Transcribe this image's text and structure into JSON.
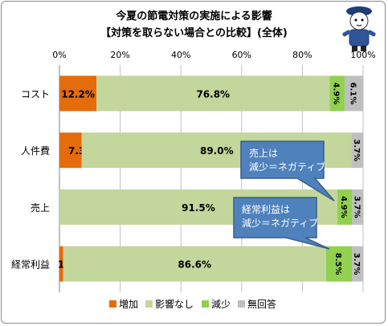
{
  "title_line1": "今夏の節電対策の実施による影響",
  "title_line2": "【対策を取らない場合との比較】(全体)",
  "colors": {
    "increase": "#e46c0a",
    "none": "#c3d69b",
    "decrease": "#92d050",
    "no_answer": "#bfbfbf",
    "callout_fill": "#4f81bd",
    "callout_border": "#385d8a",
    "grid": "#c0c0c0"
  },
  "chart_data": {
    "type": "bar",
    "orientation": "horizontal",
    "stacked": true,
    "percent": true,
    "xlim": [
      0,
      100
    ],
    "xticks": [
      "0%",
      "20%",
      "40%",
      "60%",
      "80%",
      "100%"
    ],
    "categories": [
      "コスト",
      "人件費",
      "売上",
      "経常利益"
    ],
    "series": [
      {
        "name": "増加",
        "color": "#e46c0a",
        "values": [
          12.2,
          7.3,
          0,
          1.2
        ],
        "labels": [
          "12.2%",
          "7.3%",
          "",
          "1.2%"
        ]
      },
      {
        "name": "影響なし",
        "color": "#c3d69b",
        "values": [
          76.8,
          89.0,
          91.5,
          86.6
        ],
        "labels": [
          "76.8%",
          "89.0%",
          "91.5%",
          "86.6%"
        ]
      },
      {
        "name": "減少",
        "color": "#92d050",
        "values": [
          4.9,
          0,
          4.9,
          8.5
        ],
        "labels": [
          "4.9%",
          "",
          "4.9%",
          "8.5%"
        ]
      },
      {
        "name": "無回答",
        "color": "#bfbfbf",
        "values": [
          6.1,
          3.7,
          3.7,
          3.7
        ],
        "labels": [
          "6.1%",
          "3.7%",
          "3.7%",
          "3.7%"
        ]
      }
    ],
    "legend_position": "bottom",
    "grid": true,
    "annotations": [
      {
        "text": [
          "売上は",
          "減少＝ネガティブ"
        ]
      },
      {
        "text": [
          "経常利益は",
          "減少＝ネガティブ"
        ]
      }
    ]
  },
  "mascot_icon": "otaku-character-mascot"
}
